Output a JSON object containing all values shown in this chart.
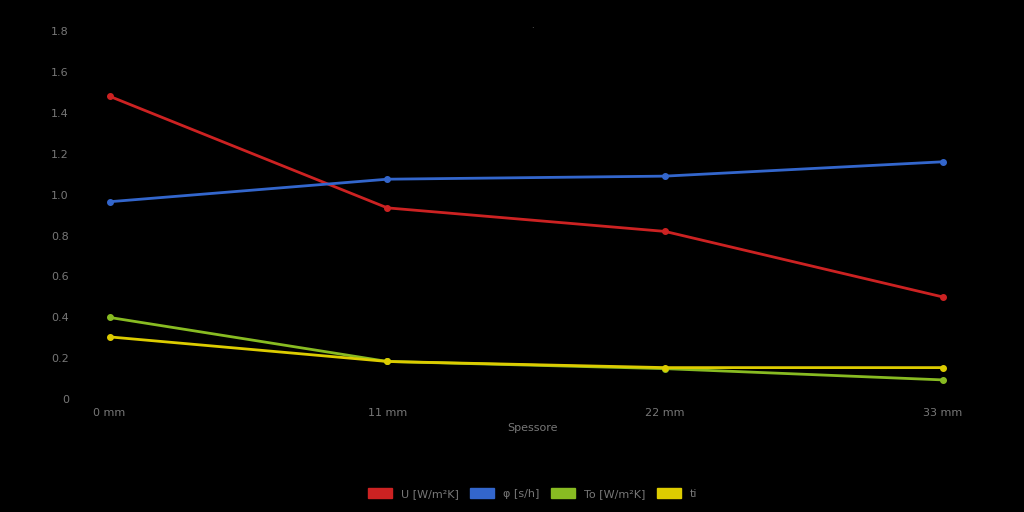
{
  "x": [
    0,
    11,
    22,
    33
  ],
  "series": [
    {
      "label": "U [W/m²K]",
      "color": "#cc2222",
      "y": [
        1.48,
        0.935,
        0.82,
        0.5
      ],
      "markersize": 4
    },
    {
      "label": "φ [s/h]",
      "color": "#3366cc",
      "y": [
        0.965,
        1.075,
        1.09,
        1.16
      ],
      "markersize": 4
    },
    {
      "label": "To [W/m²K]",
      "color": "#88bb22",
      "y": [
        0.4,
        0.185,
        0.15,
        0.095
      ],
      "markersize": 4
    },
    {
      "label": "ti",
      "color": "#ddcc00",
      "y": [
        0.305,
        0.185,
        0.155,
        0.155
      ],
      "markersize": 4
    }
  ],
  "xlabel": "Spessore",
  "ylabel": "",
  "background_color": "#000000",
  "text_color": "#777777",
  "ylim": [
    0,
    1.8
  ],
  "yticks": [
    0,
    0.2,
    0.4,
    0.6,
    0.8,
    1.0,
    1.2,
    1.4,
    1.6,
    1.8
  ],
  "xtick_labels": [
    "0 mm",
    "11 mm",
    "22 mm",
    "33 mm"
  ],
  "linewidth": 2.0,
  "legend_fontsize": 8,
  "tick_fontsize": 8,
  "xlabel_fontsize": 8
}
